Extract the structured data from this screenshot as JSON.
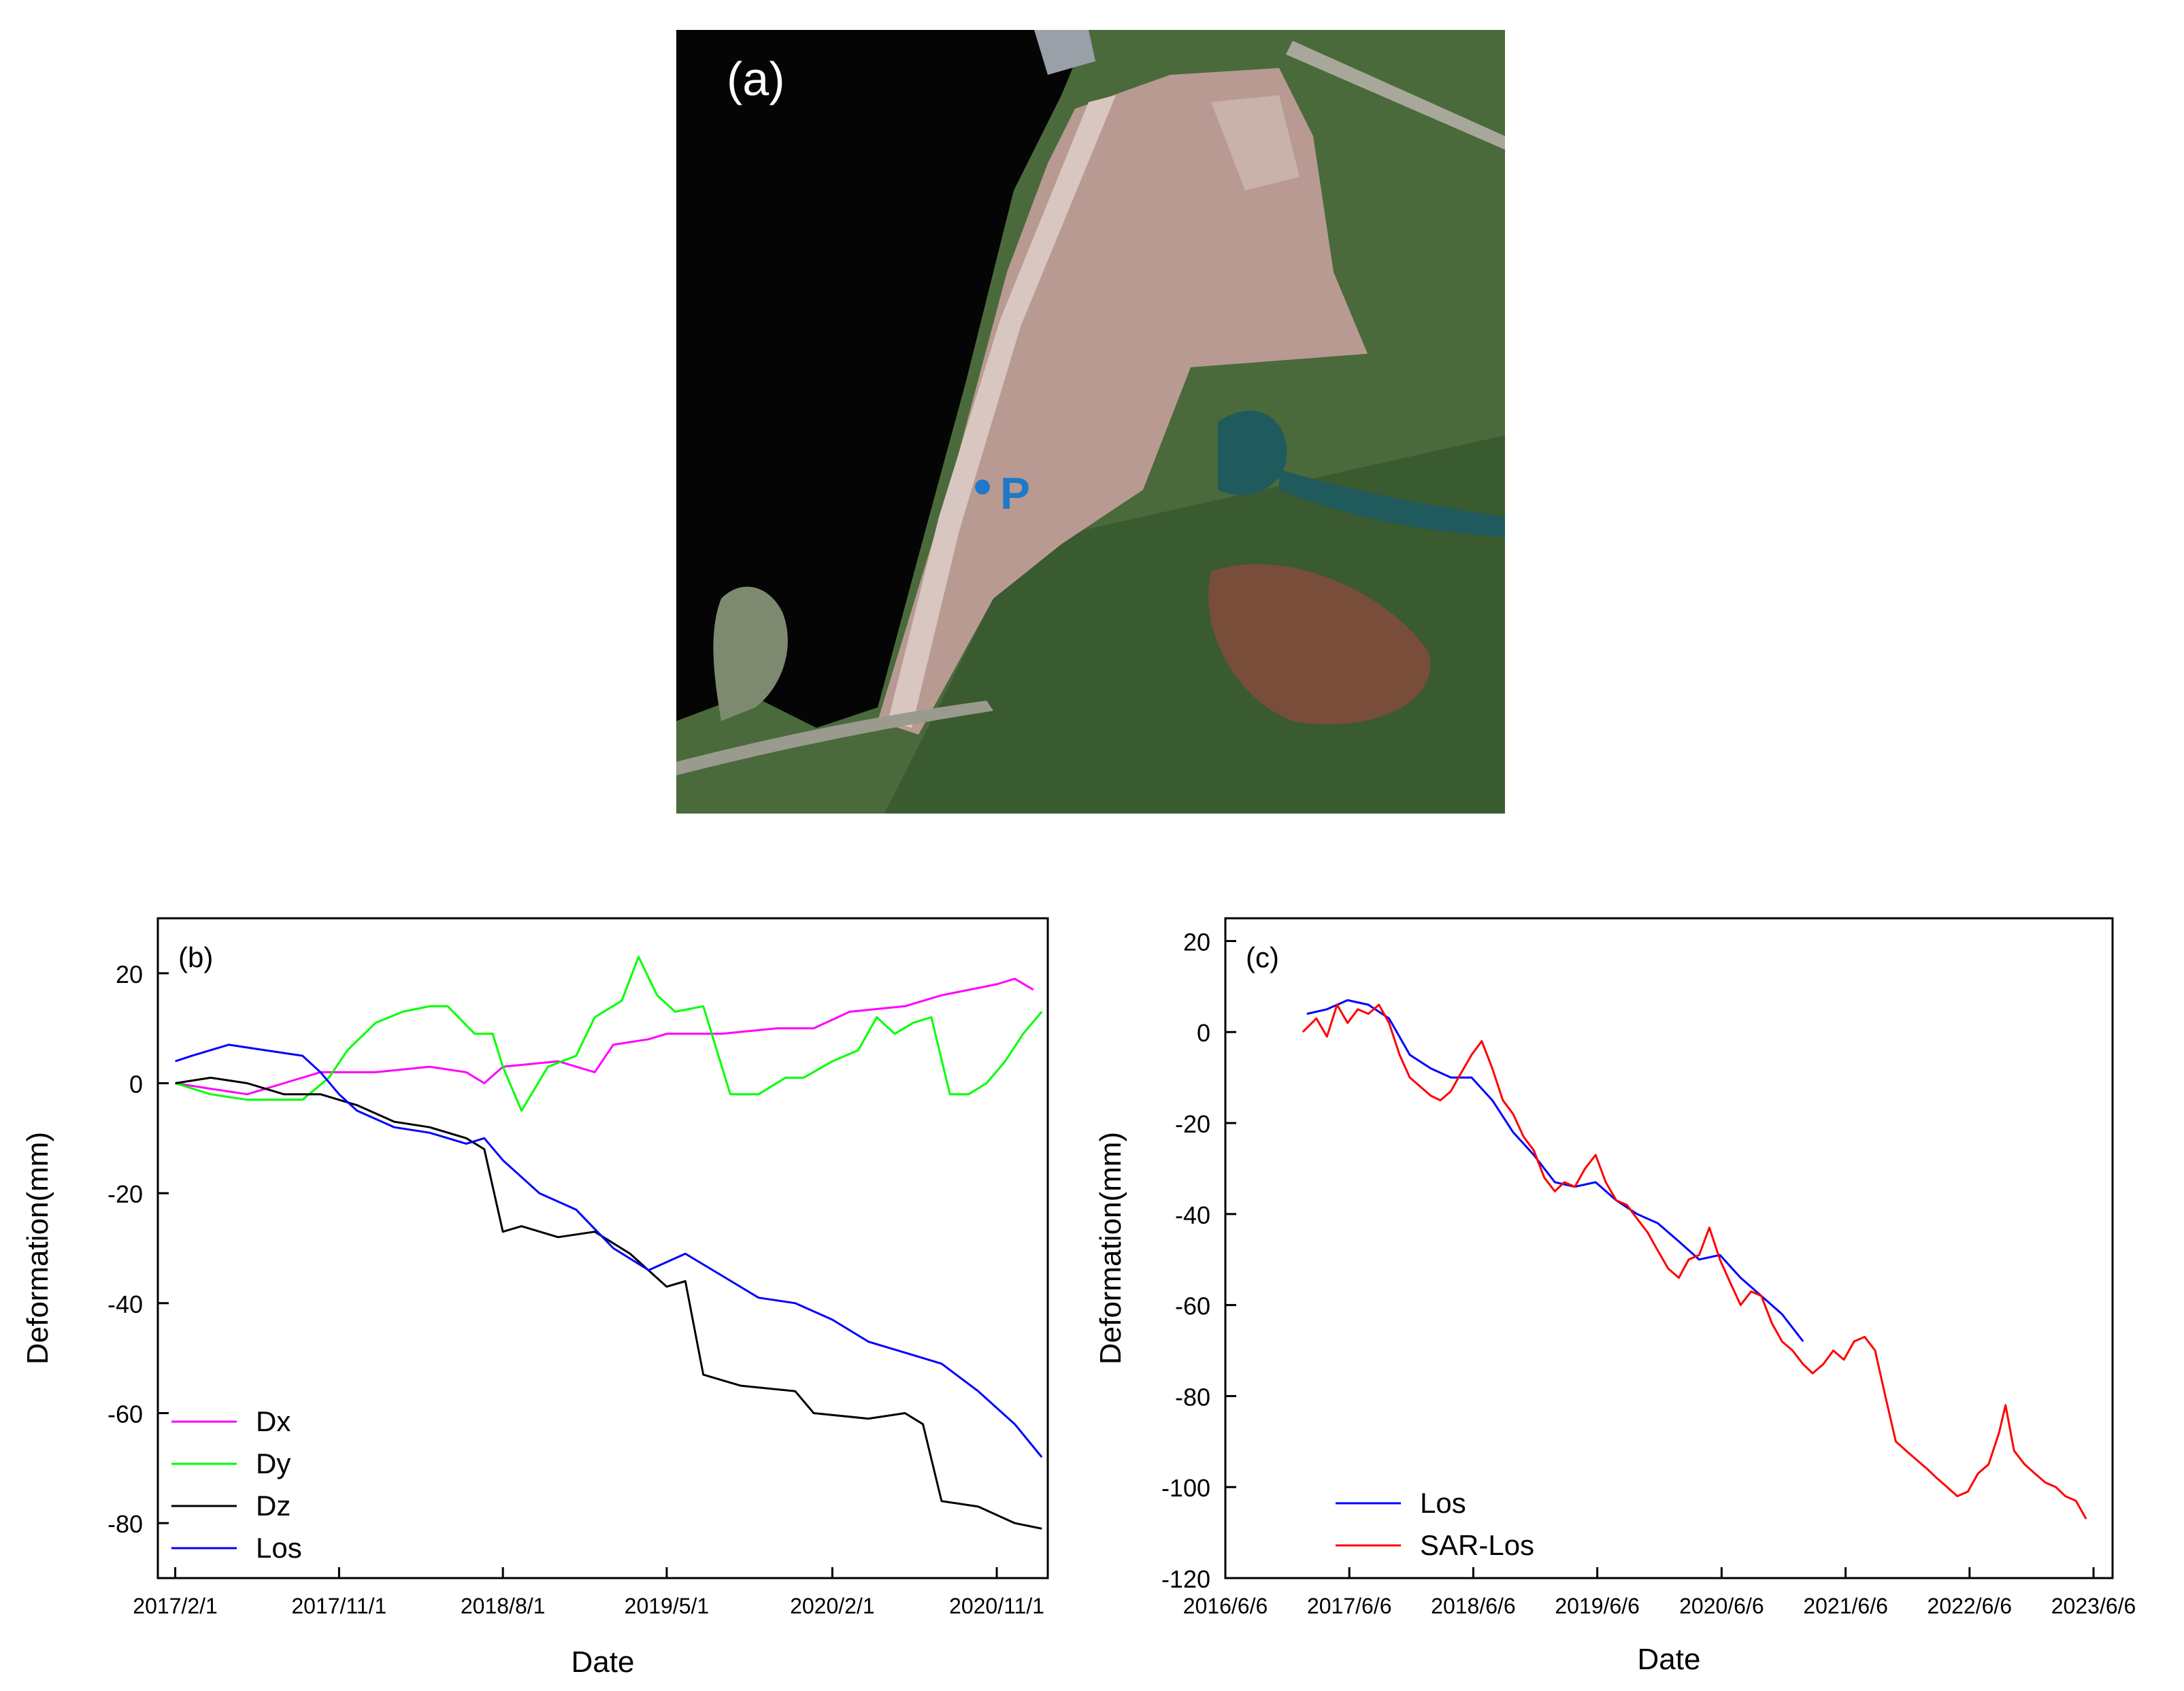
{
  "panel_a": {
    "label": "(a)",
    "point_label": "P",
    "colors": {
      "water": "#050505",
      "dam": "#b89a92",
      "dam_light": "#c9b2ab",
      "crest": "#d8c6c0",
      "vegetation": "#4a6a3c",
      "vegetation_dark": "#2e4a2a",
      "red_soil": "#a0463a",
      "pond": "#1f5a5c",
      "point": "#1f78c8"
    }
  },
  "chart_data": [
    {
      "panel": "b",
      "type": "line",
      "panel_label": "(b)",
      "xlabel": "Date",
      "ylabel": "Deformation(mm)",
      "x_ticks": [
        "2017/2/1",
        "2017/11/1",
        "2018/8/1",
        "2019/5/1",
        "2020/2/1",
        "2020/11/1"
      ],
      "xlim": [
        "2017/1/3",
        "2021/1/25"
      ],
      "y_ticks": [
        20,
        0,
        -20,
        -40,
        -60,
        -80
      ],
      "ylim": [
        -90,
        30
      ],
      "legend_position": "bottom-left",
      "series": [
        {
          "name": "Dx",
          "color": "#ff00ff",
          "points": [
            [
              "2017/2/1",
              0
            ],
            [
              "2017/4/1",
              -1
            ],
            [
              "2017/6/1",
              -2
            ],
            [
              "2017/8/1",
              0
            ],
            [
              "2017/10/1",
              2
            ],
            [
              "2018/1/1",
              2
            ],
            [
              "2018/4/1",
              3
            ],
            [
              "2018/6/1",
              2
            ],
            [
              "2018/7/1",
              0
            ],
            [
              "2018/8/1",
              3
            ],
            [
              "2018/11/1",
              4
            ],
            [
              "2019/1/1",
              2
            ],
            [
              "2019/2/1",
              7
            ],
            [
              "2019/4/1",
              8
            ],
            [
              "2019/5/1",
              9
            ],
            [
              "2019/8/1",
              9
            ],
            [
              "2019/11/1",
              10
            ],
            [
              "2020/1/1",
              10
            ],
            [
              "2020/3/1",
              13
            ],
            [
              "2020/6/1",
              14
            ],
            [
              "2020/8/1",
              16
            ],
            [
              "2020/11/1",
              18
            ],
            [
              "2020/12/1",
              19
            ],
            [
              "2021/1/1",
              17
            ]
          ]
        },
        {
          "name": "Dy",
          "color": "#00ff00",
          "points": [
            [
              "2017/2/1",
              0
            ],
            [
              "2017/4/1",
              -2
            ],
            [
              "2017/6/1",
              -3
            ],
            [
              "2017/9/1",
              -3
            ],
            [
              "2017/10/15",
              1
            ],
            [
              "2017/11/15",
              6
            ],
            [
              "2018/1/1",
              11
            ],
            [
              "2018/2/15",
              13
            ],
            [
              "2018/4/1",
              14
            ],
            [
              "2018/5/1",
              14
            ],
            [
              "2018/6/15",
              9
            ],
            [
              "2018/7/15",
              9
            ],
            [
              "2018/8/1",
              3
            ],
            [
              "2018/9/1",
              -5
            ],
            [
              "2018/10/15",
              3
            ],
            [
              "2018/12/1",
              5
            ],
            [
              "2019/1/1",
              12
            ],
            [
              "2019/2/15",
              15
            ],
            [
              "2019/3/15",
              23
            ],
            [
              "2019/4/15",
              16
            ],
            [
              "2019/5/15",
              13
            ],
            [
              "2019/7/1",
              14
            ],
            [
              "2019/8/15",
              -2
            ],
            [
              "2019/10/1",
              -2
            ],
            [
              "2019/11/15",
              1
            ],
            [
              "2019/12/15",
              1
            ],
            [
              "2020/2/1",
              4
            ],
            [
              "2020/3/15",
              6
            ],
            [
              "2020/4/15",
              12
            ],
            [
              "2020/5/15",
              9
            ],
            [
              "2020/6/15",
              11
            ],
            [
              "2020/7/15",
              12
            ],
            [
              "2020/8/15",
              -2
            ],
            [
              "2020/9/15",
              -2
            ],
            [
              "2020/10/15",
              0
            ],
            [
              "2020/11/15",
              4
            ],
            [
              "2020/12/15",
              9
            ],
            [
              "2021/1/15",
              13
            ]
          ]
        },
        {
          "name": "Dz",
          "color": "#000000",
          "points": [
            [
              "2017/2/1",
              0
            ],
            [
              "2017/4/1",
              1
            ],
            [
              "2017/6/1",
              0
            ],
            [
              "2017/8/1",
              -2
            ],
            [
              "2017/10/1",
              -2
            ],
            [
              "2017/12/1",
              -4
            ],
            [
              "2018/2/1",
              -7
            ],
            [
              "2018/4/1",
              -8
            ],
            [
              "2018/6/1",
              -10
            ],
            [
              "2018/7/1",
              -12
            ],
            [
              "2018/8/1",
              -27
            ],
            [
              "2018/9/1",
              -26
            ],
            [
              "2018/11/1",
              -28
            ],
            [
              "2019/1/1",
              -27
            ],
            [
              "2019/3/1",
              -31
            ],
            [
              "2019/5/1",
              -37
            ],
            [
              "2019/6/1",
              -36
            ],
            [
              "2019/7/1",
              -53
            ],
            [
              "2019/9/1",
              -55
            ],
            [
              "2019/12/1",
              -56
            ],
            [
              "2020/1/1",
              -60
            ],
            [
              "2020/4/1",
              -61
            ],
            [
              "2020/6/1",
              -60
            ],
            [
              "2020/7/1",
              -62
            ],
            [
              "2020/8/1",
              -76
            ],
            [
              "2020/10/1",
              -77
            ],
            [
              "2020/12/1",
              -80
            ],
            [
              "2021/1/15",
              -81
            ]
          ]
        },
        {
          "name": "Los",
          "color": "#0000ff",
          "points": [
            [
              "2017/2/1",
              4
            ],
            [
              "2017/3/1",
              5
            ],
            [
              "2017/5/1",
              7
            ],
            [
              "2017/7/1",
              6
            ],
            [
              "2017/9/1",
              5
            ],
            [
              "2017/10/1",
              2
            ],
            [
              "2017/11/1",
              -2
            ],
            [
              "2017/12/1",
              -5
            ],
            [
              "2018/2/1",
              -8
            ],
            [
              "2018/4/1",
              -9
            ],
            [
              "2018/6/1",
              -11
            ],
            [
              "2018/7/1",
              -10
            ],
            [
              "2018/8/1",
              -14
            ],
            [
              "2018/10/1",
              -20
            ],
            [
              "2018/12/1",
              -23
            ],
            [
              "2019/2/1",
              -30
            ],
            [
              "2019/4/1",
              -34
            ],
            [
              "2019/6/1",
              -31
            ],
            [
              "2019/8/1",
              -35
            ],
            [
              "2019/10/1",
              -39
            ],
            [
              "2019/12/1",
              -40
            ],
            [
              "2020/2/1",
              -43
            ],
            [
              "2020/4/1",
              -47
            ],
            [
              "2020/6/1",
              -49
            ],
            [
              "2020/8/1",
              -51
            ],
            [
              "2020/10/1",
              -56
            ],
            [
              "2020/12/1",
              -62
            ],
            [
              "2021/1/15",
              -68
            ]
          ]
        }
      ]
    },
    {
      "panel": "c",
      "type": "line",
      "panel_label": "(c)",
      "xlabel": "Date",
      "ylabel": "Deformation(mm)",
      "x_ticks": [
        "2016/6/6",
        "2017/6/6",
        "2018/6/6",
        "2019/6/6",
        "2020/6/6",
        "2021/6/6",
        "2022/6/6",
        "2023/6/6"
      ],
      "xlim": [
        "2016/6/6",
        "2023/8/1"
      ],
      "y_ticks": [
        20,
        0,
        -20,
        -40,
        -60,
        -80,
        -100,
        -120
      ],
      "ylim": [
        -120,
        25
      ],
      "legend_position": "bottom-left",
      "series": [
        {
          "name": "Los",
          "color": "#0000ff",
          "points": [
            [
              "2017/2/1",
              4
            ],
            [
              "2017/4/1",
              5
            ],
            [
              "2017/6/1",
              7
            ],
            [
              "2017/8/1",
              6
            ],
            [
              "2017/10/1",
              3
            ],
            [
              "2017/12/1",
              -5
            ],
            [
              "2018/2/1",
              -8
            ],
            [
              "2018/4/1",
              -10
            ],
            [
              "2018/6/1",
              -10
            ],
            [
              "2018/8/1",
              -15
            ],
            [
              "2018/10/1",
              -22
            ],
            [
              "2018/12/1",
              -27
            ],
            [
              "2019/2/1",
              -33
            ],
            [
              "2019/4/1",
              -34
            ],
            [
              "2019/6/1",
              -33
            ],
            [
              "2019/8/1",
              -37
            ],
            [
              "2019/10/1",
              -40
            ],
            [
              "2019/12/1",
              -42
            ],
            [
              "2020/2/1",
              -46
            ],
            [
              "2020/4/1",
              -50
            ],
            [
              "2020/6/1",
              -49
            ],
            [
              "2020/8/1",
              -54
            ],
            [
              "2020/10/1",
              -58
            ],
            [
              "2020/12/1",
              -62
            ],
            [
              "2021/2/1",
              -68
            ]
          ]
        },
        {
          "name": "SAR-Los",
          "color": "#ff0000",
          "points": [
            [
              "2017/1/20",
              0
            ],
            [
              "2017/3/1",
              3
            ],
            [
              "2017/4/1",
              -1
            ],
            [
              "2017/5/1",
              6
            ],
            [
              "2017/6/1",
              2
            ],
            [
              "2017/7/1",
              5
            ],
            [
              "2017/8/1",
              4
            ],
            [
              "2017/9/1",
              6
            ],
            [
              "2017/10/1",
              2
            ],
            [
              "2017/11/1",
              -5
            ],
            [
              "2017/12/1",
              -10
            ],
            [
              "2018/1/1",
              -12
            ],
            [
              "2018/2/1",
              -14
            ],
            [
              "2018/3/1",
              -15
            ],
            [
              "2018/4/1",
              -13
            ],
            [
              "2018/5/1",
              -9
            ],
            [
              "2018/6/1",
              -5
            ],
            [
              "2018/7/1",
              -2
            ],
            [
              "2018/8/1",
              -8
            ],
            [
              "2018/9/1",
              -15
            ],
            [
              "2018/10/1",
              -18
            ],
            [
              "2018/11/1",
              -23
            ],
            [
              "2018/12/1",
              -26
            ],
            [
              "2019/1/1",
              -32
            ],
            [
              "2019/2/1",
              -35
            ],
            [
              "2019/3/1",
              -33
            ],
            [
              "2019/4/1",
              -34
            ],
            [
              "2019/5/1",
              -30
            ],
            [
              "2019/6/1",
              -27
            ],
            [
              "2019/7/1",
              -33
            ],
            [
              "2019/8/1",
              -37
            ],
            [
              "2019/9/1",
              -38
            ],
            [
              "2019/10/1",
              -41
            ],
            [
              "2019/11/1",
              -44
            ],
            [
              "2019/12/1",
              -48
            ],
            [
              "2020/1/1",
              -52
            ],
            [
              "2020/2/1",
              -54
            ],
            [
              "2020/3/1",
              -50
            ],
            [
              "2020/4/1",
              -49
            ],
            [
              "2020/5/1",
              -43
            ],
            [
              "2020/6/1",
              -50
            ],
            [
              "2020/7/1",
              -55
            ],
            [
              "2020/8/1",
              -60
            ],
            [
              "2020/9/1",
              -57
            ],
            [
              "2020/10/1",
              -58
            ],
            [
              "2020/11/1",
              -64
            ],
            [
              "2020/12/1",
              -68
            ],
            [
              "2021/1/1",
              -70
            ],
            [
              "2021/2/1",
              -73
            ],
            [
              "2021/3/1",
              -75
            ],
            [
              "2021/4/1",
              -73
            ],
            [
              "2021/5/1",
              -70
            ],
            [
              "2021/6/1",
              -72
            ],
            [
              "2021/7/1",
              -68
            ],
            [
              "2021/8/1",
              -67
            ],
            [
              "2021/9/1",
              -70
            ],
            [
              "2021/10/1",
              -80
            ],
            [
              "2021/11/1",
              -90
            ],
            [
              "2021/12/1",
              -92
            ],
            [
              "2022/1/1",
              -94
            ],
            [
              "2022/2/1",
              -96
            ],
            [
              "2022/3/1",
              -98
            ],
            [
              "2022/4/1",
              -100
            ],
            [
              "2022/5/1",
              -102
            ],
            [
              "2022/6/1",
              -101
            ],
            [
              "2022/7/1",
              -97
            ],
            [
              "2022/8/1",
              -95
            ],
            [
              "2022/9/1",
              -88
            ],
            [
              "2022/9/20",
              -82
            ],
            [
              "2022/10/15",
              -92
            ],
            [
              "2022/11/15",
              -95
            ],
            [
              "2022/12/15",
              -97
            ],
            [
              "2023/1/15",
              -99
            ],
            [
              "2023/2/15",
              -100
            ],
            [
              "2023/3/15",
              -102
            ],
            [
              "2023/4/15",
              -103
            ],
            [
              "2023/5/15",
              -107
            ]
          ]
        }
      ]
    }
  ]
}
